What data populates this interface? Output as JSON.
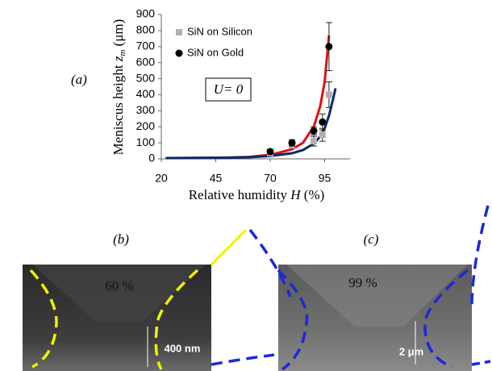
{
  "chart_data": {
    "type": "scatter",
    "panel_label": "(a)",
    "x_label": "Relative humidity",
    "x_symbol": "H",
    "x_unit": "(%)",
    "y_label": "Meniscus height",
    "y_symbol": "z",
    "y_symbol_sub": "m",
    "y_unit": "(μm)",
    "annotation": "U= 0",
    "xlim": [
      20,
      100
    ],
    "xticks": [
      20,
      45,
      70,
      95
    ],
    "ylim": [
      0,
      900
    ],
    "yticks": [
      0,
      100,
      200,
      300,
      400,
      500,
      600,
      700,
      800,
      900
    ],
    "series": [
      {
        "name": "SiN on Silicon",
        "color": "#b0b0b0",
        "marker": "square",
        "x": [
          70,
          80,
          90,
          94,
          97
        ],
        "values": [
          35,
          85,
          110,
          150,
          400
        ],
        "errors": [
          10,
          15,
          30,
          40,
          80
        ]
      },
      {
        "name": "SiN on Gold",
        "color": "#000000",
        "marker": "circle",
        "x": [
          70,
          80,
          90,
          94,
          97
        ],
        "values": [
          45,
          100,
          175,
          230,
          700
        ],
        "errors": [
          15,
          20,
          25,
          50,
          150
        ]
      }
    ],
    "fits": [
      {
        "color": "#e01010",
        "x": [
          22,
          50,
          60,
          70,
          80,
          85,
          90,
          93,
          95,
          97
        ],
        "values": [
          5,
          8,
          12,
          25,
          60,
          100,
          200,
          330,
          480,
          770
        ]
      },
      {
        "color": "#0a2a6a",
        "x": [
          22,
          50,
          60,
          70,
          80,
          85,
          90,
          93,
          95,
          97,
          99,
          100
        ],
        "values": [
          5,
          7,
          10,
          18,
          35,
          55,
          95,
          140,
          190,
          270,
          380,
          440
        ]
      }
    ]
  },
  "panels": [
    {
      "label": "(b)",
      "humidity": "60 %",
      "scale": "400 nm"
    },
    {
      "label": "(c)",
      "humidity": "99 %",
      "scale": "2 μm"
    }
  ]
}
